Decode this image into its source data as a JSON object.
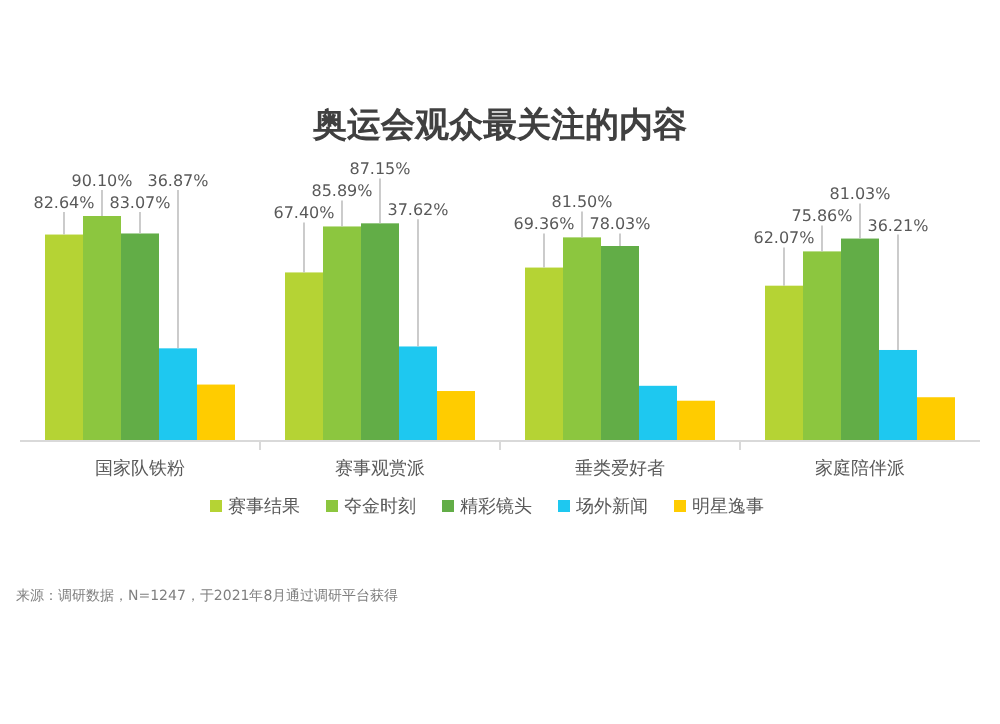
{
  "chart_data": {
    "type": "bar",
    "title": "奥运会观众最关注的内容",
    "categories": [
      "国家队铁粉",
      "赛事观赏派",
      "垂类爱好者",
      "家庭陪伴派"
    ],
    "series": [
      {
        "name": "赛事结果",
        "color": "#b5d334",
        "values": [
          82.64,
          67.4,
          69.36,
          62.07
        ],
        "value_labels": [
          "82.64%",
          "67.40%",
          "69.36%",
          "62.07%"
        ]
      },
      {
        "name": "夺金时刻",
        "color": "#8cc63f",
        "values": [
          90.1,
          85.89,
          81.5,
          75.86
        ],
        "value_labels": [
          "90.10%",
          "85.89%",
          "81.50%",
          "75.86%"
        ]
      },
      {
        "name": "精彩镜头",
        "color": "#62ad47",
        "values": [
          83.07,
          87.15,
          78.03,
          81.03
        ],
        "value_labels": [
          "83.07%",
          "87.15%",
          "78.03%",
          "81.03%"
        ]
      },
      {
        "name": "场外新闻",
        "color": "#1ec8f0",
        "values": [
          36.87,
          37.62,
          21.8,
          36.21
        ],
        "value_labels": [
          "36.87%",
          "37.62%",
          null,
          "36.21%"
        ]
      },
      {
        "name": "明星逸事",
        "color": "#ffcc00",
        "values": [
          22.3,
          19.7,
          15.8,
          17.2
        ],
        "value_labels": [
          null,
          null,
          null,
          null
        ]
      }
    ],
    "legend": "bottom",
    "annotations": [
      "来源：调研数据，N=1247，于2021年8月通过调研平台获得"
    ]
  }
}
